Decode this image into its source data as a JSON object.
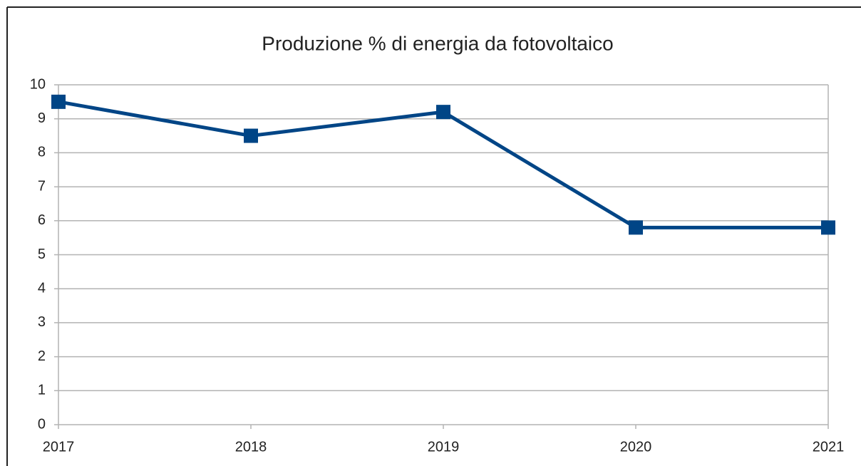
{
  "chart_data": {
    "type": "line",
    "title": "Produzione % di energia da fotovoltaico",
    "categories": [
      "2017",
      "2018",
      "2019",
      "2020",
      "2021"
    ],
    "series": [
      {
        "name": "Produzione %",
        "color": "#004586",
        "values": [
          9.5,
          8.5,
          9.2,
          5.8,
          5.8
        ]
      }
    ],
    "ylim": [
      0,
      10
    ],
    "yticks": [
      0,
      1,
      2,
      3,
      4,
      5,
      6,
      7,
      8,
      9,
      10
    ],
    "grid": true
  }
}
